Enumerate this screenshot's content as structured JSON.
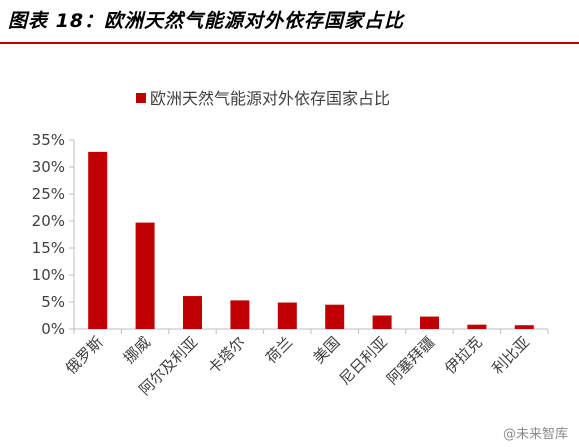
{
  "header": {
    "title": "图表 18：欧洲天然气能源对外依存国家占比"
  },
  "watermark": {
    "text": "@未来智库"
  },
  "colors": {
    "bar": "#c00000",
    "axis": "#bfbfbf",
    "rule": "#c00000"
  },
  "chart_data": {
    "type": "bar",
    "title": "",
    "xlabel": "",
    "ylabel": "",
    "legend_position": "top-center",
    "grid": false,
    "ylim": [
      0,
      35
    ],
    "yticks": [
      0,
      5,
      10,
      15,
      20,
      25,
      30,
      35
    ],
    "ytick_labels": [
      "0%",
      "5%",
      "10%",
      "15%",
      "20%",
      "25%",
      "30%",
      "35%"
    ],
    "categories": [
      "俄罗斯",
      "挪威",
      "阿尔及利亚",
      "卡塔尔",
      "荷兰",
      "美国",
      "尼日利亚",
      "阿塞拜疆",
      "伊拉克",
      "利比亚"
    ],
    "series": [
      {
        "name": "欧洲天然气能源对外依存国家占比",
        "values": [
          32.8,
          19.7,
          6.1,
          5.3,
          4.9,
          4.5,
          2.5,
          2.3,
          0.8,
          0.7
        ]
      }
    ]
  }
}
